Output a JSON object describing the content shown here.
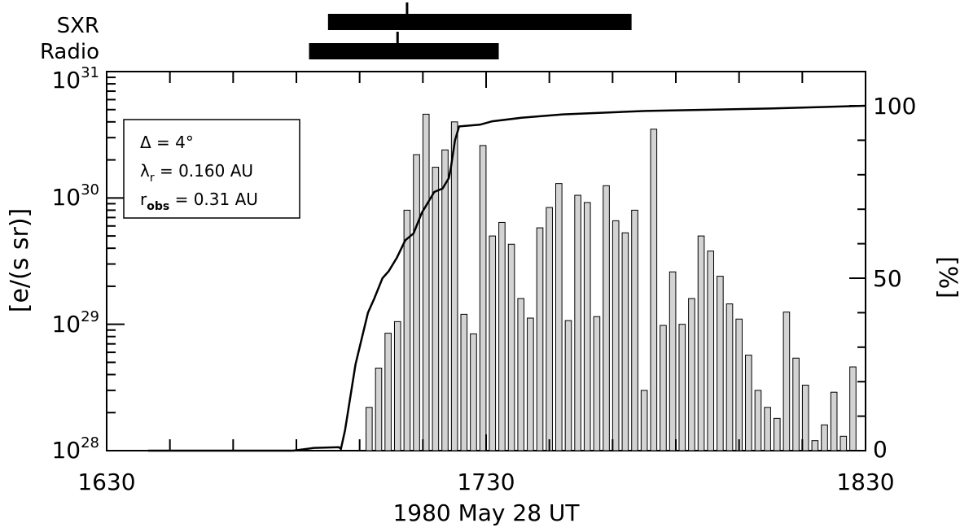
{
  "chart_data": {
    "type": "bar",
    "xlabel": "1980 May 28 UT",
    "ylabel_left": "[e/(s sr)]",
    "ylabel_right": "[%]",
    "x_ticks": [
      "1630",
      "1730",
      "1830"
    ],
    "y_left_ticks": [
      {
        "mantissa": "10",
        "exp": "28",
        "value": 1e+28
      },
      {
        "mantissa": "10",
        "exp": "29",
        "value": 1e+29
      },
      {
        "mantissa": "10",
        "exp": "30",
        "value": 1e+30
      },
      {
        "mantissa": "10",
        "exp": "31",
        "value": 1e+31
      }
    ],
    "y_right_ticks": [
      "0",
      "50",
      "100"
    ],
    "xlim_minutes": [
      0,
      120
    ],
    "ylim_left": [
      1e+28,
      1e+31
    ],
    "ylog_left": true,
    "ylim_right_percent": [
      0,
      100
    ],
    "bar_fill": "#d3d3d3",
    "intervals": [
      {
        "label": "SXR",
        "start": 1700,
        "end": 1748,
        "mark": 1704
      },
      {
        "label": "Radio",
        "start": 1654,
        "end": 1736,
        "mark": 1702
      }
    ],
    "interval_spans_minutes": [
      {
        "start": 35,
        "end": 83,
        "mark": 47.5
      },
      {
        "start": 32,
        "end": 62,
        "mark": 46
      }
    ],
    "legend": {
      "delta_label": "Δ = 4°",
      "lambda_sym": "λ",
      "lambda_sub": "r",
      "lambda_value": " = 0.160 AU",
      "r_sym": "r",
      "r_sub": "obs",
      "r_value": " = 0.31 AU"
    },
    "bars_minutes": [
      41.5,
      43,
      44.5,
      46,
      47.5,
      49,
      50.5,
      52,
      53.5,
      55,
      56.5,
      58,
      59.5,
      61,
      62.5,
      64,
      65.5,
      67,
      68.5,
      70,
      71.5,
      73,
      74.5,
      76,
      77.5,
      79,
      80.5,
      82,
      83.5,
      85,
      86.5,
      88,
      89.5,
      91,
      92.5,
      94,
      95.5,
      97,
      98.5,
      100,
      101.5,
      103,
      104.5,
      106,
      107.5,
      109,
      110.5,
      112,
      113.5,
      115,
      116.5,
      118
    ],
    "bars_values": [
      2.2e+28,
      4.5e+28,
      8.5e+28,
      1.05e+29,
      8e+29,
      2.2e+30,
      4.6e+30,
      1.75e+30,
      2.4e+30,
      4e+30,
      1.2e+29,
      8.4e+28,
      2.6e+30,
      5e+29,
      6.4e+29,
      4.3e+29,
      1.6e+29,
      1.12e+29,
      5.8e+29,
      8.4e+29,
      1.3e+30,
      1.07e+29,
      1.05e+30,
      9.2e+29,
      1.15e+29,
      1.25e+30,
      6.6e+29,
      5.3e+29,
      8e+29,
      3e+28,
      3.5e+30,
      9.8e+28,
      2.6e+29,
      1e+29,
      1.6e+29,
      5e+29,
      3.8e+29,
      2.4e+29,
      1.45e+29,
      1.1e+29,
      5.7e+28,
      3e+28,
      2.2e+28,
      1.8e+28,
      1.25e+29,
      5.4e+28,
      3.3e+28,
      1.2e+28,
      1.6e+28,
      2.9e+28,
      1.3e+28,
      4.6e+28
    ],
    "cumulative_percent_points": [
      [
        10,
        0
      ],
      [
        45,
        0
      ],
      [
        50,
        0.8
      ],
      [
        56,
        1
      ],
      [
        56.5,
        0.5
      ],
      [
        57.5,
        6
      ],
      [
        60,
        25
      ],
      [
        63,
        40
      ],
      [
        64.5,
        44
      ],
      [
        66.5,
        50
      ],
      [
        68,
        52
      ],
      [
        70,
        56
      ],
      [
        72,
        61
      ],
      [
        74,
        63
      ],
      [
        76,
        69
      ],
      [
        77,
        71
      ],
      [
        79,
        75
      ],
      [
        81,
        76
      ],
      [
        82.5,
        79
      ],
      [
        83,
        82
      ],
      [
        84,
        90
      ],
      [
        85,
        94
      ],
      [
        90,
        94.5
      ],
      [
        93,
        95.5
      ],
      [
        100,
        96.5
      ],
      [
        110,
        97.5
      ],
      [
        130,
        98.5
      ],
      [
        160,
        99.2
      ],
      [
        183,
        100
      ]
    ]
  }
}
